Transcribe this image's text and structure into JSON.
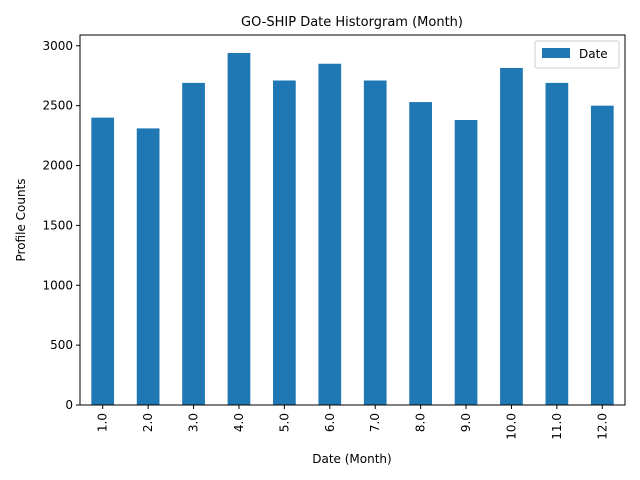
{
  "chart_data": {
    "type": "bar",
    "title": "GO-SHIP Date Historgram (Month)",
    "xlabel": "Date (Month)",
    "ylabel": "Profile Counts",
    "categories": [
      "1.0",
      "2.0",
      "3.0",
      "4.0",
      "5.0",
      "6.0",
      "7.0",
      "8.0",
      "9.0",
      "10.0",
      "11.0",
      "12.0"
    ],
    "series": [
      {
        "name": "Date",
        "values": [
          2400,
          2310,
          2690,
          2940,
          2710,
          2850,
          2710,
          2530,
          2380,
          2815,
          2690,
          2500
        ]
      }
    ],
    "ylim": [
      0,
      3090
    ],
    "yticks": [
      0,
      500,
      1000,
      1500,
      2000,
      2500,
      3000
    ],
    "grid": false,
    "legend_position": "top-right",
    "bar_color": "#1f77b4"
  }
}
